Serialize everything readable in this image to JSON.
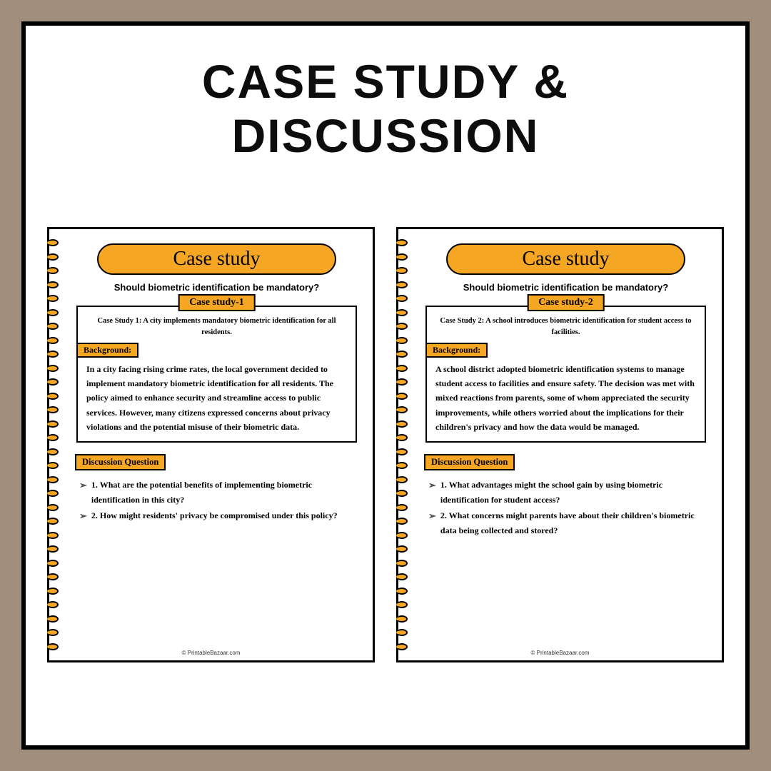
{
  "main_title": "Case study & Discussion",
  "header_pill": "Case study",
  "subtitle": "Should biometric identification be mandatory?",
  "background_label": "Background:",
  "discussion_label": "Discussion Question",
  "footer": "© PrintableBazaar.com",
  "colors": {
    "page_background": "#a08f7d",
    "white": "#ffffff",
    "black": "#000000",
    "accent": "#f5a623"
  },
  "pages": [
    {
      "case_tab": "Case study-1",
      "case_intro": "Case Study 1: A city implements mandatory biometric identification for all residents.",
      "background": "In a city facing rising crime rates, the local government decided to implement mandatory biometric identification for all residents. The policy aimed to enhance security and streamline access to public services. However, many citizens expressed concerns about privacy violations and the potential misuse of their biometric data.",
      "questions": [
        "1. What are the potential benefits of implementing biometric identification in this city?",
        "2. How might residents' privacy be compromised under this policy?"
      ]
    },
    {
      "case_tab": "Case study-2",
      "case_intro": "Case Study 2: A school introduces biometric identification for student access to facilities.",
      "background": "A school district adopted biometric identification systems to manage student access to facilities and ensure safety. The decision was met with mixed reactions from parents, some of whom appreciated the security improvements, while others worried about the implications for their children's privacy and how the data would be managed.",
      "questions": [
        "1. What advantages might the school gain by using biometric identification for student access?",
        "2. What concerns might parents have about their children's biometric data being collected and stored?"
      ]
    }
  ]
}
